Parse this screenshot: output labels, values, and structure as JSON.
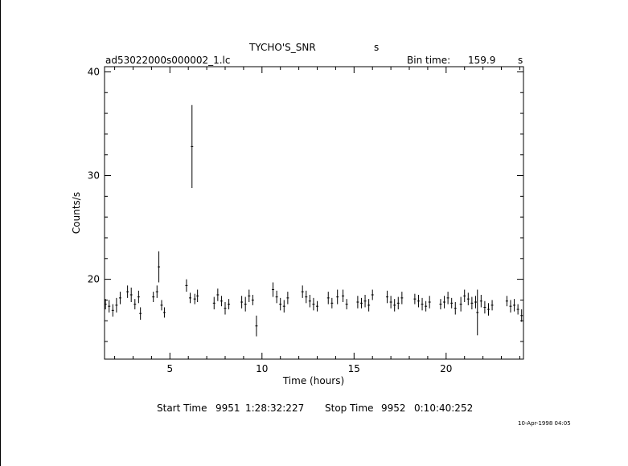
{
  "header": {
    "object_name": "TYCHO'S_SNR",
    "object_unit": "s",
    "file_name": "ad53022000s000002_1.lc",
    "bin_label": "Bin time:",
    "bin_value": "159.9",
    "bin_unit": "s"
  },
  "footer": {
    "start_label": "Start Time",
    "start_day": "9951",
    "start_time": "1:28:32:227",
    "stop_label": "Stop Time",
    "stop_day": "9952",
    "stop_time": "0:10:40:252",
    "date_stamp": "10-Apr-1998 04:05"
  },
  "chart_data": {
    "type": "scatter",
    "xlabel": "Time (hours)",
    "ylabel": "Counts/s",
    "xlim": [
      1.45,
      24.2
    ],
    "ylim": [
      12.3,
      40.5
    ],
    "x_ticks": [
      5,
      10,
      15,
      20
    ],
    "y_ticks": [
      20,
      30,
      40
    ],
    "grid": false,
    "error_bars": "vertical",
    "points": [
      [
        1.5,
        17.6,
        0.5
      ],
      [
        1.7,
        17.4,
        0.6
      ],
      [
        1.9,
        17.0,
        0.6
      ],
      [
        2.1,
        17.5,
        0.7
      ],
      [
        2.3,
        18.2,
        0.6
      ],
      [
        2.7,
        18.8,
        0.6
      ],
      [
        2.9,
        18.5,
        0.7
      ],
      [
        3.1,
        17.6,
        0.5
      ],
      [
        3.3,
        18.3,
        0.6
      ],
      [
        3.4,
        16.7,
        0.6
      ],
      [
        4.1,
        18.3,
        0.5
      ],
      [
        4.3,
        18.8,
        0.6
      ],
      [
        4.4,
        21.2,
        1.5
      ],
      [
        4.55,
        17.5,
        0.5
      ],
      [
        4.7,
        16.8,
        0.5
      ],
      [
        5.9,
        19.4,
        0.6
      ],
      [
        6.1,
        18.2,
        0.5
      ],
      [
        6.2,
        32.8,
        4.0
      ],
      [
        6.35,
        18.1,
        0.5
      ],
      [
        6.5,
        18.4,
        0.6
      ],
      [
        7.4,
        17.7,
        0.6
      ],
      [
        7.6,
        18.5,
        0.6
      ],
      [
        7.8,
        17.9,
        0.5
      ],
      [
        8.0,
        17.2,
        0.6
      ],
      [
        8.2,
        17.6,
        0.5
      ],
      [
        8.9,
        17.8,
        0.6
      ],
      [
        9.1,
        17.6,
        0.7
      ],
      [
        9.3,
        18.4,
        0.6
      ],
      [
        9.5,
        18.0,
        0.5
      ],
      [
        9.7,
        15.5,
        1.0
      ],
      [
        10.6,
        19.0,
        0.7
      ],
      [
        10.8,
        18.3,
        0.6
      ],
      [
        11.0,
        17.6,
        0.6
      ],
      [
        11.2,
        17.4,
        0.6
      ],
      [
        11.4,
        18.2,
        0.6
      ],
      [
        12.2,
        18.8,
        0.6
      ],
      [
        12.4,
        18.3,
        0.6
      ],
      [
        12.6,
        17.9,
        0.6
      ],
      [
        12.8,
        17.6,
        0.6
      ],
      [
        13.0,
        17.4,
        0.5
      ],
      [
        13.6,
        18.2,
        0.6
      ],
      [
        13.8,
        17.7,
        0.5
      ],
      [
        14.1,
        18.3,
        0.7
      ],
      [
        14.4,
        18.4,
        0.6
      ],
      [
        14.6,
        17.6,
        0.5
      ],
      [
        15.2,
        17.8,
        0.6
      ],
      [
        15.4,
        17.7,
        0.5
      ],
      [
        15.6,
        17.9,
        0.6
      ],
      [
        15.8,
        17.5,
        0.6
      ],
      [
        16.0,
        18.5,
        0.5
      ],
      [
        16.8,
        18.3,
        0.6
      ],
      [
        17.0,
        17.8,
        0.6
      ],
      [
        17.2,
        17.5,
        0.6
      ],
      [
        17.4,
        17.7,
        0.6
      ],
      [
        17.6,
        18.2,
        0.6
      ],
      [
        18.3,
        18.1,
        0.5
      ],
      [
        18.5,
        17.9,
        0.6
      ],
      [
        18.7,
        17.6,
        0.6
      ],
      [
        18.9,
        17.4,
        0.5
      ],
      [
        19.1,
        17.8,
        0.6
      ],
      [
        19.7,
        17.6,
        0.5
      ],
      [
        19.9,
        17.8,
        0.6
      ],
      [
        20.1,
        18.2,
        0.6
      ],
      [
        20.3,
        17.7,
        0.5
      ],
      [
        20.5,
        17.2,
        0.6
      ],
      [
        20.8,
        17.6,
        0.7
      ],
      [
        21.0,
        18.4,
        0.6
      ],
      [
        21.2,
        18.1,
        0.6
      ],
      [
        21.4,
        17.7,
        0.6
      ],
      [
        21.6,
        17.8,
        0.6
      ],
      [
        21.7,
        16.8,
        2.2
      ],
      [
        21.9,
        17.9,
        0.6
      ],
      [
        22.1,
        17.3,
        0.6
      ],
      [
        22.3,
        17.1,
        0.6
      ],
      [
        22.5,
        17.5,
        0.5
      ],
      [
        23.3,
        17.9,
        0.5
      ],
      [
        23.5,
        17.4,
        0.6
      ],
      [
        23.7,
        17.5,
        0.6
      ],
      [
        23.9,
        17.1,
        0.5
      ],
      [
        24.1,
        16.5,
        0.6
      ]
    ]
  }
}
